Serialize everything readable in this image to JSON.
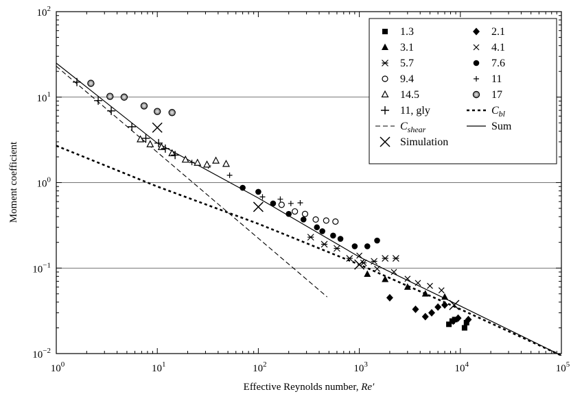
{
  "chart_data": {
    "type": "scatter",
    "title": "",
    "xlabel_prefix": "Effective Reynolds number, ",
    "xlabel_var": "Re′",
    "ylabel": "Moment coefficient",
    "x_scale": "log",
    "y_scale": "log",
    "xlim": [
      1,
      100000
    ],
    "ylim": [
      0.01,
      100
    ],
    "x_ticks": [
      {
        "value": 1,
        "base": "10",
        "exp": "0"
      },
      {
        "value": 10,
        "base": "10",
        "exp": "1"
      },
      {
        "value": 100,
        "base": "10",
        "exp": "2"
      },
      {
        "value": 1000,
        "base": "10",
        "exp": "3"
      },
      {
        "value": 10000,
        "base": "10",
        "exp": "4"
      },
      {
        "value": 100000,
        "base": "10",
        "exp": "5"
      }
    ],
    "y_ticks": [
      {
        "value": 0.01,
        "base": "10",
        "exp": "−2"
      },
      {
        "value": 0.1,
        "base": "10",
        "exp": "−1"
      },
      {
        "value": 1,
        "base": "10",
        "exp": "0"
      },
      {
        "value": 10,
        "base": "10",
        "exp": "1"
      },
      {
        "value": 100,
        "base": "10",
        "exp": "2"
      }
    ],
    "grid": "horizontal-major",
    "legend_position": "top-right",
    "series": [
      {
        "name": "1.3",
        "marker": "square",
        "points": [
          [
            7700,
            0.022
          ],
          [
            8300,
            0.024
          ],
          [
            8800,
            0.025
          ],
          [
            11000,
            0.02
          ],
          [
            11500,
            0.023
          ]
        ]
      },
      {
        "name": "2.1",
        "marker": "diamond",
        "points": [
          [
            2000,
            0.045
          ],
          [
            3600,
            0.033
          ],
          [
            4500,
            0.027
          ],
          [
            5200,
            0.03
          ],
          [
            6000,
            0.035
          ],
          [
            7000,
            0.037
          ],
          [
            8500,
            0.024
          ],
          [
            9500,
            0.026
          ],
          [
            12000,
            0.025
          ]
        ]
      },
      {
        "name": "3.1",
        "marker": "triangle",
        "points": [
          [
            1200,
            0.085
          ],
          [
            1800,
            0.074
          ],
          [
            3000,
            0.06
          ],
          [
            4500,
            0.05
          ],
          [
            7000,
            0.046
          ]
        ]
      },
      {
        "name": "4.1",
        "marker": "x",
        "points": [
          [
            1000,
            0.14
          ],
          [
            1500,
            0.098
          ],
          [
            2200,
            0.09
          ],
          [
            3000,
            0.075
          ],
          [
            3800,
            0.067
          ],
          [
            5000,
            0.062
          ],
          [
            6500,
            0.055
          ]
        ]
      },
      {
        "name": "5.7",
        "marker": "asterisk",
        "points": [
          [
            330,
            0.23
          ],
          [
            450,
            0.19
          ],
          [
            600,
            0.17
          ],
          [
            800,
            0.13
          ],
          [
            1100,
            0.115
          ],
          [
            1400,
            0.12
          ],
          [
            1800,
            0.13
          ],
          [
            2300,
            0.13
          ]
        ]
      },
      {
        "name": "7.6",
        "marker": "circle-filled",
        "points": [
          [
            70,
            0.87
          ],
          [
            100,
            0.78
          ],
          [
            140,
            0.57
          ],
          [
            200,
            0.43
          ],
          [
            280,
            0.37
          ],
          [
            380,
            0.3
          ],
          [
            430,
            0.27
          ],
          [
            550,
            0.24
          ],
          [
            650,
            0.22
          ],
          [
            900,
            0.18
          ],
          [
            1200,
            0.18
          ],
          [
            1500,
            0.21
          ]
        ]
      },
      {
        "name": "9.4",
        "marker": "circle-open",
        "points": [
          [
            170,
            0.55
          ],
          [
            230,
            0.46
          ],
          [
            290,
            0.43
          ],
          [
            370,
            0.37
          ],
          [
            470,
            0.36
          ],
          [
            580,
            0.35
          ]
        ]
      },
      {
        "name": "11",
        "marker": "plus-small",
        "points": [
          [
            22,
            1.72
          ],
          [
            32,
            1.57
          ],
          [
            52,
            1.22
          ],
          [
            110,
            0.68
          ],
          [
            165,
            0.64
          ],
          [
            210,
            0.57
          ],
          [
            260,
            0.58
          ]
        ]
      },
      {
        "name": "14.5",
        "marker": "triangle-open",
        "points": [
          [
            6.8,
            3.2
          ],
          [
            8.5,
            2.8
          ],
          [
            11,
            2.6
          ],
          [
            14,
            2.2
          ],
          [
            19,
            1.85
          ],
          [
            25,
            1.7
          ],
          [
            31,
            1.62
          ],
          [
            38,
            1.8
          ],
          [
            48,
            1.65
          ]
        ]
      },
      {
        "name": "17",
        "marker": "circle-gray",
        "points": [
          [
            2.2,
            14.5
          ],
          [
            3.4,
            10.2
          ],
          [
            4.7,
            10.0
          ],
          [
            7.4,
            7.9
          ],
          [
            10,
            6.8
          ],
          [
            14,
            6.6
          ]
        ]
      },
      {
        "name": "11, gly",
        "marker": "plus",
        "points": [
          [
            1.6,
            15.0
          ],
          [
            2.6,
            9.1
          ],
          [
            3.5,
            6.9
          ],
          [
            5.6,
            4.5
          ],
          [
            7.7,
            3.3
          ],
          [
            10.3,
            2.9
          ],
          [
            12,
            2.5
          ],
          [
            15,
            2.1
          ]
        ]
      },
      {
        "name": "Simulation",
        "marker": "x-large",
        "points": [
          [
            10,
            4.4
          ],
          [
            100,
            0.52
          ],
          [
            1000,
            0.11
          ],
          [
            8700,
            0.037
          ]
        ]
      }
    ],
    "lines": [
      {
        "name": "C",
        "name_sub": "shear",
        "style": "dashed",
        "points": [
          [
            1,
            23
          ],
          [
            480,
            0.046
          ]
        ]
      },
      {
        "name": "C",
        "name_sub": "bl",
        "style": "dotted-thick",
        "points": [
          [
            1,
            2.7
          ],
          [
            10,
            0.9
          ],
          [
            100,
            0.33
          ],
          [
            1000,
            0.11
          ],
          [
            10000,
            0.033
          ],
          [
            100000,
            0.0095
          ]
        ]
      },
      {
        "name": "Sum",
        "style": "solid",
        "points": [
          [
            1,
            25
          ],
          [
            10,
            2.9
          ],
          [
            100,
            0.66
          ],
          [
            1000,
            0.135
          ],
          [
            10000,
            0.036
          ],
          [
            100000,
            0.0095
          ]
        ]
      }
    ]
  }
}
